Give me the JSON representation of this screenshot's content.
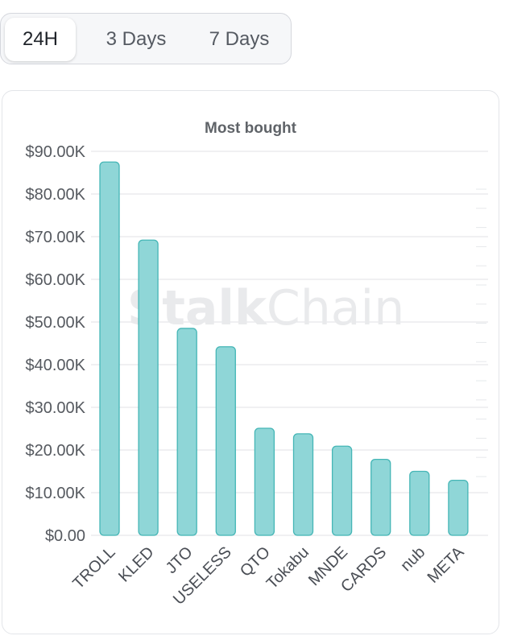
{
  "tabs": [
    {
      "label": "24H",
      "active": true
    },
    {
      "label": "3 Days",
      "active": false
    },
    {
      "label": "7 Days",
      "active": false
    }
  ],
  "watermark": {
    "bold": "Stalk",
    "light": "Chain"
  },
  "colors": {
    "bar_fill": "#8fd6d7",
    "bar_stroke": "#45b6b6",
    "grid": "#e6e8eb"
  },
  "chart_data": {
    "type": "bar",
    "title": "Most bought",
    "xlabel": "",
    "ylabel": "",
    "categories": [
      "TROLL",
      "KLED",
      "JTO",
      "USELESS",
      "QTO",
      "Tokabu",
      "MNDE",
      "CARDS",
      "nub",
      "META"
    ],
    "values": [
      87500,
      69200,
      48500,
      44200,
      25100,
      23800,
      20900,
      17800,
      15000,
      12900
    ],
    "ylim": [
      0,
      90000
    ],
    "yticks": [
      0,
      10000,
      20000,
      30000,
      40000,
      50000,
      60000,
      70000,
      80000,
      90000
    ],
    "ytick_labels": [
      "$0.00",
      "$10.00K",
      "$20.00K",
      "$30.00K",
      "$40.00K",
      "$50.00K",
      "$60.00K",
      "$70.00K",
      "$80.00K",
      "$90.00K"
    ],
    "grid": true,
    "legend": "none"
  }
}
